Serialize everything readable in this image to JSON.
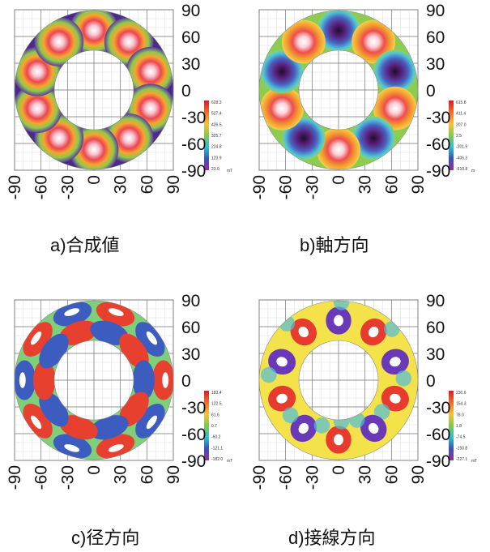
{
  "panels": [
    {
      "id": "a",
      "caption": "a)合成値",
      "unit": "mT",
      "colorbar_labels": [
        "628.3",
        "527.4",
        "426.5",
        "325.7",
        "224.8",
        "123.9",
        "23.0"
      ],
      "y_ticks": [
        "90",
        "60",
        "30",
        "0",
        "-30",
        "-60",
        "-90"
      ],
      "x_ticks": [
        "-90",
        "-60",
        "-30",
        "0",
        "30",
        "60",
        "90"
      ]
    },
    {
      "id": "b",
      "caption": "b)軸方向",
      "unit": "m",
      "colorbar_labels": [
        "615.8",
        "411.4",
        "207.0",
        "2.5",
        "-201.9",
        "-406.3",
        "-610.8"
      ],
      "y_ticks": [
        "90",
        "60",
        "30",
        "0",
        "-30",
        "-60",
        "-90"
      ],
      "x_ticks": [
        "-90",
        "-60",
        "-30",
        "0",
        "30",
        "60",
        "90"
      ]
    },
    {
      "id": "c",
      "caption": "c)径方向",
      "unit": "mT",
      "colorbar_labels": [
        "183.4",
        "122.5",
        "61.6",
        "0.7",
        "-60.2",
        "-121.1",
        "-182.0"
      ],
      "y_ticks": [
        "90",
        "60",
        "30",
        "0",
        "-30",
        "-60",
        "-90"
      ],
      "x_ticks": [
        "-90",
        "-60",
        "-30",
        "0",
        "30",
        "60",
        "90"
      ]
    },
    {
      "id": "d",
      "caption": "d)接線方向",
      "unit": "mT",
      "colorbar_labels": [
        "230.6",
        "154.3",
        "78.0",
        "1.8",
        "-74.5",
        "-150.8",
        "-227.1"
      ],
      "y_ticks": [
        "90",
        "60",
        "30",
        "0",
        "-30",
        "-60",
        "-90"
      ],
      "x_ticks": [
        "-90",
        "-60",
        "-30",
        "0",
        "30",
        "60",
        "90"
      ]
    }
  ],
  "chart_data": [
    {
      "type": "heatmap",
      "title": "a)合成値",
      "xlim": [
        -90,
        90
      ],
      "ylim": [
        -90,
        90
      ],
      "ring_inner_radius": 45,
      "ring_outer_radius": 90,
      "poles": 10,
      "unit": "mT",
      "range": [
        23.0,
        628.3
      ]
    },
    {
      "type": "heatmap",
      "title": "b)軸方向",
      "xlim": [
        -90,
        90
      ],
      "ylim": [
        -90,
        90
      ],
      "ring_inner_radius": 45,
      "ring_outer_radius": 90,
      "poles": 10,
      "unit": "m",
      "range": [
        -610.8,
        615.8
      ]
    },
    {
      "type": "heatmap",
      "title": "c)径方向",
      "xlim": [
        -90,
        90
      ],
      "ylim": [
        -90,
        90
      ],
      "ring_inner_radius": 45,
      "ring_outer_radius": 90,
      "poles": 10,
      "unit": "mT",
      "range": [
        -182.0,
        183.4
      ]
    },
    {
      "type": "heatmap",
      "title": "d)接線方向",
      "xlim": [
        -90,
        90
      ],
      "ylim": [
        -90,
        90
      ],
      "ring_inner_radius": 45,
      "ring_outer_radius": 90,
      "poles": 10,
      "unit": "mT",
      "range": [
        -227.1,
        230.6
      ]
    }
  ]
}
